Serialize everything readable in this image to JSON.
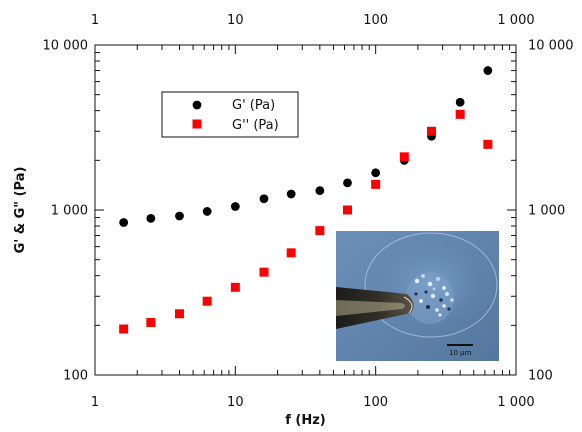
{
  "chart_data": {
    "type": "scatter",
    "x_scale": "log",
    "y_scale": "log",
    "xlim": [
      1,
      1000
    ],
    "ylim": [
      100,
      10000
    ],
    "xlabel": "f (Hz)",
    "ylabel": "G' & G\" (Pa)",
    "x_ticks": [
      {
        "value": 1,
        "label": "1"
      },
      {
        "value": 10,
        "label": "10"
      },
      {
        "value": 100,
        "label": "100"
      },
      {
        "value": 1000,
        "label": "1 000"
      }
    ],
    "y_ticks": [
      {
        "value": 100,
        "label": "100"
      },
      {
        "value": 1000,
        "label": "1 000"
      },
      {
        "value": 10000,
        "label": "10 000"
      }
    ],
    "grid": false,
    "legend": {
      "placement": "top-left"
    },
    "series": [
      {
        "name": "G' (Pa)",
        "marker": "circle",
        "color": "#000000",
        "points": [
          {
            "x": 1.6,
            "y": 840
          },
          {
            "x": 2.5,
            "y": 890
          },
          {
            "x": 4.0,
            "y": 920
          },
          {
            "x": 6.3,
            "y": 980
          },
          {
            "x": 10,
            "y": 1050
          },
          {
            "x": 16,
            "y": 1170
          },
          {
            "x": 25,
            "y": 1250
          },
          {
            "x": 40,
            "y": 1310
          },
          {
            "x": 63,
            "y": 1460
          },
          {
            "x": 100,
            "y": 1680
          },
          {
            "x": 160,
            "y": 2000
          },
          {
            "x": 250,
            "y": 2800
          },
          {
            "x": 400,
            "y": 4500
          },
          {
            "x": 630,
            "y": 7000
          }
        ]
      },
      {
        "name": "G'' (Pa)",
        "marker": "square",
        "color": "#ff0000",
        "points": [
          {
            "x": 1.6,
            "y": 190
          },
          {
            "x": 2.5,
            "y": 208
          },
          {
            "x": 4.0,
            "y": 235
          },
          {
            "x": 6.3,
            "y": 280
          },
          {
            "x": 10,
            "y": 340
          },
          {
            "x": 16,
            "y": 420
          },
          {
            "x": 25,
            "y": 550
          },
          {
            "x": 40,
            "y": 750
          },
          {
            "x": 63,
            "y": 1000
          },
          {
            "x": 100,
            "y": 1430
          },
          {
            "x": 160,
            "y": 2100
          },
          {
            "x": 250,
            "y": 3000
          },
          {
            "x": 400,
            "y": 3800
          },
          {
            "x": 630,
            "y": 2500
          }
        ]
      }
    ],
    "inset": {
      "scale_bar_label": "10 μm"
    }
  }
}
